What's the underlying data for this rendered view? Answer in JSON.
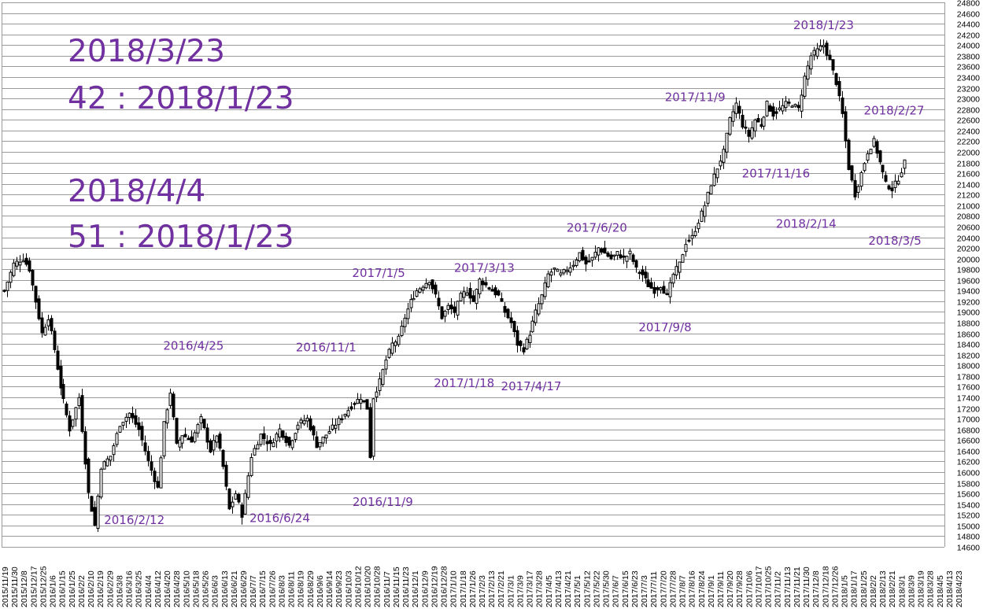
{
  "chart_data": {
    "type": "candlestick",
    "ylim": [
      14600,
      24800
    ],
    "y_ticks": [
      14600,
      14800,
      15000,
      15200,
      15400,
      15600,
      15800,
      16000,
      16200,
      16400,
      16600,
      16800,
      17000,
      17200,
      17400,
      17600,
      17800,
      18000,
      18200,
      18400,
      18600,
      18800,
      19000,
      19200,
      19400,
      19600,
      19800,
      20000,
      20200,
      20400,
      20600,
      20800,
      21000,
      21200,
      21400,
      21600,
      21800,
      22000,
      22200,
      22400,
      22600,
      22800,
      23000,
      23200,
      23400,
      23600,
      23800,
      24000,
      24200,
      24400,
      24600,
      24800
    ],
    "x_tick_labels": [
      "2015/11/19",
      "2015/11/30",
      "2015/12/8",
      "2015/12/17",
      "2015/12/25",
      "2016/1/6",
      "2016/1/15",
      "2016/1/25",
      "2016/2/2",
      "2016/2/10",
      "2016/2/19",
      "2016/2/29",
      "2016/3/8",
      "2016/3/16",
      "2016/3/25",
      "2016/4/4",
      "2016/4/12",
      "2016/4/20",
      "2016/4/28",
      "2016/5/10",
      "2016/5/18",
      "2016/5/26",
      "2016/6/3",
      "2016/6/13",
      "2016/6/21",
      "2016/6/29",
      "2016/7/7",
      "2016/7/15",
      "2016/7/26",
      "2016/8/3",
      "2016/8/11",
      "2016/8/19",
      "2016/8/29",
      "2016/9/6",
      "2016/9/14",
      "2016/9/23",
      "2016/10/3",
      "2016/10/12",
      "2016/10/20",
      "2016/10/28",
      "2016/11/7",
      "2016/11/15",
      "2016/11/23",
      "2016/12/1",
      "2016/12/9",
      "2016/12/19",
      "2016/12/28",
      "2017/1/10",
      "2017/1/18",
      "2017/1/26",
      "2017/2/3",
      "2017/2/13",
      "2017/2/21",
      "2017/3/1",
      "2017/3/9",
      "2017/3/17",
      "2017/3/28",
      "2017/4/5",
      "2017/4/13",
      "2017/4/21",
      "2017/5/1",
      "2017/5/12",
      "2017/5/22",
      "2017/5/30",
      "2017/6/7",
      "2017/6/15",
      "2017/6/23",
      "2017/7/3",
      "2017/7/11",
      "2017/7/20",
      "2017/7/28",
      "2017/8/7",
      "2017/8/16",
      "2017/8/24",
      "2017/9/1",
      "2017/9/11",
      "2017/9/20",
      "2017/9/28",
      "2017/10/6",
      "2017/10/17",
      "2017/10/25",
      "2017/11/2",
      "2017/11/13",
      "2017/11/21",
      "2017/11/30",
      "2017/12/8",
      "2017/12/18",
      "2017/12/26",
      "2018/1/5",
      "2018/1/17",
      "2018/1/25",
      "2018/2/2",
      "2018/2/13",
      "2018/2/21",
      "2018/3/1",
      "2018/3/9",
      "2018/3/19",
      "2018/3/28",
      "2018/4/5",
      "2018/4/13",
      "2018/4/23"
    ],
    "candles_every_n": 1,
    "points": [
      {
        "x": 0,
        "close": 19400
      },
      {
        "x": 3,
        "close": 19900
      },
      {
        "x": 6,
        "close": 20000
      },
      {
        "x": 8,
        "close": 19800
      },
      {
        "x": 10,
        "close": 19200
      },
      {
        "x": 12,
        "close": 18600
      },
      {
        "x": 14,
        "close": 18900
      },
      {
        "x": 16,
        "close": 18300
      },
      {
        "x": 18,
        "close": 17600
      },
      {
        "x": 21,
        "close": 16800
      },
      {
        "x": 24,
        "close": 17400
      },
      {
        "x": 27,
        "close": 15600
      },
      {
        "x": 29,
        "close": 15000
      },
      {
        "x": 31,
        "close": 16100
      },
      {
        "x": 34,
        "close": 16300
      },
      {
        "x": 37,
        "close": 16900
      },
      {
        "x": 40,
        "close": 17100
      },
      {
        "x": 43,
        "close": 16800
      },
      {
        "x": 46,
        "close": 16200
      },
      {
        "x": 49,
        "close": 15700
      },
      {
        "x": 51,
        "close": 16900
      },
      {
        "x": 53,
        "close": 17500
      },
      {
        "x": 55,
        "close": 16500
      },
      {
        "x": 57,
        "close": 16700
      },
      {
        "x": 60,
        "close": 16600
      },
      {
        "x": 63,
        "close": 17000
      },
      {
        "x": 66,
        "close": 16400
      },
      {
        "x": 68,
        "close": 16700
      },
      {
        "x": 70,
        "close": 16100
      },
      {
        "x": 72,
        "close": 15300
      },
      {
        "x": 74,
        "close": 15600
      },
      {
        "x": 76,
        "close": 15200
      },
      {
        "x": 79,
        "close": 16300
      },
      {
        "x": 82,
        "close": 16700
      },
      {
        "x": 85,
        "close": 16500
      },
      {
        "x": 88,
        "close": 16800
      },
      {
        "x": 91,
        "close": 16500
      },
      {
        "x": 94,
        "close": 16900
      },
      {
        "x": 97,
        "close": 17000
      },
      {
        "x": 100,
        "close": 16500
      },
      {
        "x": 103,
        "close": 16700
      },
      {
        "x": 106,
        "close": 16900
      },
      {
        "x": 109,
        "close": 17100
      },
      {
        "x": 112,
        "close": 17300
      },
      {
        "x": 114,
        "close": 17400
      },
      {
        "x": 116,
        "close": 17200
      },
      {
        "x": 117,
        "close": 16300
      },
      {
        "x": 118,
        "close": 17400
      },
      {
        "x": 120,
        "close": 17700
      },
      {
        "x": 122,
        "close": 18100
      },
      {
        "x": 124,
        "close": 18400
      },
      {
        "x": 126,
        "close": 18500
      },
      {
        "x": 128,
        "close": 18900
      },
      {
        "x": 130,
        "close": 19200
      },
      {
        "x": 132,
        "close": 19400
      },
      {
        "x": 134,
        "close": 19500
      },
      {
        "x": 136,
        "close": 19600
      },
      {
        "x": 138,
        "close": 19300
      },
      {
        "x": 140,
        "close": 18900
      },
      {
        "x": 142,
        "close": 19100
      },
      {
        "x": 144,
        "close": 19000
      },
      {
        "x": 146,
        "close": 19300
      },
      {
        "x": 148,
        "close": 19400
      },
      {
        "x": 150,
        "close": 19200
      },
      {
        "x": 152,
        "close": 19600
      },
      {
        "x": 154,
        "close": 19500
      },
      {
        "x": 156,
        "close": 19400
      },
      {
        "x": 158,
        "close": 19300
      },
      {
        "x": 160,
        "close": 19000
      },
      {
        "x": 162,
        "close": 18800
      },
      {
        "x": 164,
        "close": 18400
      },
      {
        "x": 166,
        "close": 18300
      },
      {
        "x": 168,
        "close": 18600
      },
      {
        "x": 170,
        "close": 19000
      },
      {
        "x": 172,
        "close": 19300
      },
      {
        "x": 174,
        "close": 19700
      },
      {
        "x": 176,
        "close": 19800
      },
      {
        "x": 178,
        "close": 19700
      },
      {
        "x": 180,
        "close": 19800
      },
      {
        "x": 182,
        "close": 19900
      },
      {
        "x": 184,
        "close": 20100
      },
      {
        "x": 186,
        "close": 19900
      },
      {
        "x": 188,
        "close": 20000
      },
      {
        "x": 190,
        "close": 20200
      },
      {
        "x": 192,
        "close": 20100
      },
      {
        "x": 194,
        "close": 20000
      },
      {
        "x": 196,
        "close": 20100
      },
      {
        "x": 198,
        "close": 20000
      },
      {
        "x": 200,
        "close": 20100
      },
      {
        "x": 202,
        "close": 19800
      },
      {
        "x": 204,
        "close": 19700
      },
      {
        "x": 206,
        "close": 19500
      },
      {
        "x": 208,
        "close": 19400
      },
      {
        "x": 210,
        "close": 19500
      },
      {
        "x": 212,
        "close": 19300
      },
      {
        "x": 214,
        "close": 19700
      },
      {
        "x": 216,
        "close": 19900
      },
      {
        "x": 218,
        "close": 20300
      },
      {
        "x": 220,
        "close": 20400
      },
      {
        "x": 222,
        "close": 20700
      },
      {
        "x": 224,
        "close": 21000
      },
      {
        "x": 226,
        "close": 21400
      },
      {
        "x": 228,
        "close": 21700
      },
      {
        "x": 230,
        "close": 22000
      },
      {
        "x": 232,
        "close": 22600
      },
      {
        "x": 234,
        "close": 22900
      },
      {
        "x": 236,
        "close": 22500
      },
      {
        "x": 238,
        "close": 22300
      },
      {
        "x": 240,
        "close": 22600
      },
      {
        "x": 242,
        "close": 22500
      },
      {
        "x": 244,
        "close": 22900
      },
      {
        "x": 246,
        "close": 22700
      },
      {
        "x": 248,
        "close": 22800
      },
      {
        "x": 250,
        "close": 22900
      },
      {
        "x": 252,
        "close": 22900
      },
      {
        "x": 254,
        "close": 22800
      },
      {
        "x": 256,
        "close": 23400
      },
      {
        "x": 258,
        "close": 23800
      },
      {
        "x": 260,
        "close": 23900
      },
      {
        "x": 262,
        "close": 24000
      },
      {
        "x": 264,
        "close": 23700
      },
      {
        "x": 266,
        "close": 23300
      },
      {
        "x": 268,
        "close": 22700
      },
      {
        "x": 270,
        "close": 21700
      },
      {
        "x": 272,
        "close": 21200
      },
      {
        "x": 274,
        "close": 21600
      },
      {
        "x": 276,
        "close": 22000
      },
      {
        "x": 278,
        "close": 22200
      },
      {
        "x": 280,
        "close": 21800
      },
      {
        "x": 282,
        "close": 21400
      },
      {
        "x": 284,
        "close": 21300
      },
      {
        "x": 286,
        "close": 21500
      },
      {
        "x": 288,
        "close": 21800
      }
    ],
    "annotations": [
      {
        "label": "2016/4/25",
        "x": 60,
        "value": 17700
      },
      {
        "label": "2016/2/12",
        "x": 29,
        "value": 15000
      },
      {
        "label": "2016/6/24",
        "x": 76,
        "value": 14950
      },
      {
        "label": "2016/11/1",
        "x": 116,
        "value": 17600
      },
      {
        "label": "2016/11/9",
        "x": 117,
        "value": 16100
      },
      {
        "label": "2017/1/5",
        "x": 134,
        "value": 19800
      },
      {
        "label": "2017/1/18",
        "x": 140,
        "value": 18700
      },
      {
        "label": "2017/3/13",
        "x": 154,
        "value": 19900
      },
      {
        "label": "2017/4/17",
        "x": 166,
        "value": 18200
      },
      {
        "label": "2017/6/20",
        "x": 190,
        "value": 20500
      },
      {
        "label": "2017/9/8",
        "x": 212,
        "value": 19200
      },
      {
        "label": "2017/11/9",
        "x": 234,
        "value": 23100
      },
      {
        "label": "2017/11/16",
        "x": 236,
        "value": 21800
      },
      {
        "label": "2018/1/23",
        "x": 262,
        "value": 24300
      },
      {
        "label": "2018/2/27",
        "x": 278,
        "value": 22700
      },
      {
        "label": "2018/2/14",
        "x": 272,
        "value": 20900
      },
      {
        "label": "2018/3/5",
        "x": 284,
        "value": 20700
      }
    ]
  },
  "overlay_text": {
    "line1": "2018/3/23",
    "line2": "42 : 2018/1/23",
    "line3": "2018/4/4",
    "line4": "51 : 2018/1/23"
  },
  "colors": {
    "accent": "#7030a0",
    "grid": "#9a9a9a",
    "candle": "#000000"
  }
}
